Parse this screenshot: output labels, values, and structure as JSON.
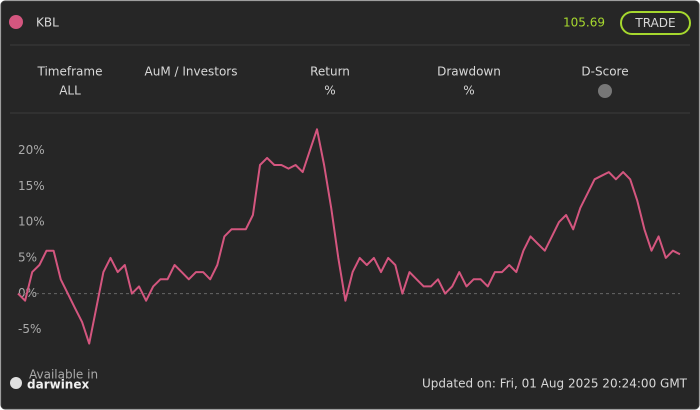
{
  "header": {
    "name": "KBL",
    "price": "105.69",
    "button": "TRADE"
  },
  "stats": [
    {
      "label": "Timeframe",
      "value": "ALL"
    },
    {
      "label": "AuM / Investors",
      "value": null
    },
    {
      "label": "Return",
      "value": "%"
    },
    {
      "label": "Drawdown",
      "value": "%"
    },
    {
      "label": "D-Score",
      "value": null
    }
  ],
  "chart_data": {
    "type": "line",
    "series": [
      {
        "name": "KBL",
        "color": "#d4567f",
        "values": [
          0,
          -1,
          3,
          4,
          6,
          6,
          2,
          0,
          -2,
          -4,
          -7,
          -2,
          3,
          5,
          3,
          4,
          0,
          1,
          -1,
          1,
          2,
          2,
          4,
          3,
          2,
          3,
          3,
          2,
          4,
          8,
          9,
          9,
          9,
          11,
          18,
          19,
          18,
          18,
          17.5,
          18,
          17,
          20,
          23,
          18,
          12,
          5,
          -1,
          3,
          5,
          4,
          5,
          3,
          5,
          4,
          0,
          3,
          2,
          1,
          1,
          2,
          0,
          1,
          3,
          1,
          2,
          2,
          1,
          3,
          3,
          4,
          3,
          6,
          8,
          7,
          6,
          8,
          10,
          11,
          9,
          12,
          14,
          16,
          16.5,
          17,
          16,
          17,
          16,
          13,
          9,
          6,
          8,
          5,
          6,
          5.5
        ]
      }
    ],
    "ylim": [
      -10,
      25
    ],
    "yticks": [
      {
        "value": -5,
        "label": "-5%"
      },
      {
        "value": 0,
        "label": "0%"
      },
      {
        "value": 5,
        "label": "5%"
      },
      {
        "value": 10,
        "label": "10%"
      },
      {
        "value": 15,
        "label": "15%"
      },
      {
        "value": 20,
        "label": "20%"
      }
    ]
  },
  "footer": {
    "brand_note": "Available in",
    "brand": "darwinex",
    "updated": "Updated on: Fri, 01 Aug 2025 20:24:00 GMT"
  }
}
